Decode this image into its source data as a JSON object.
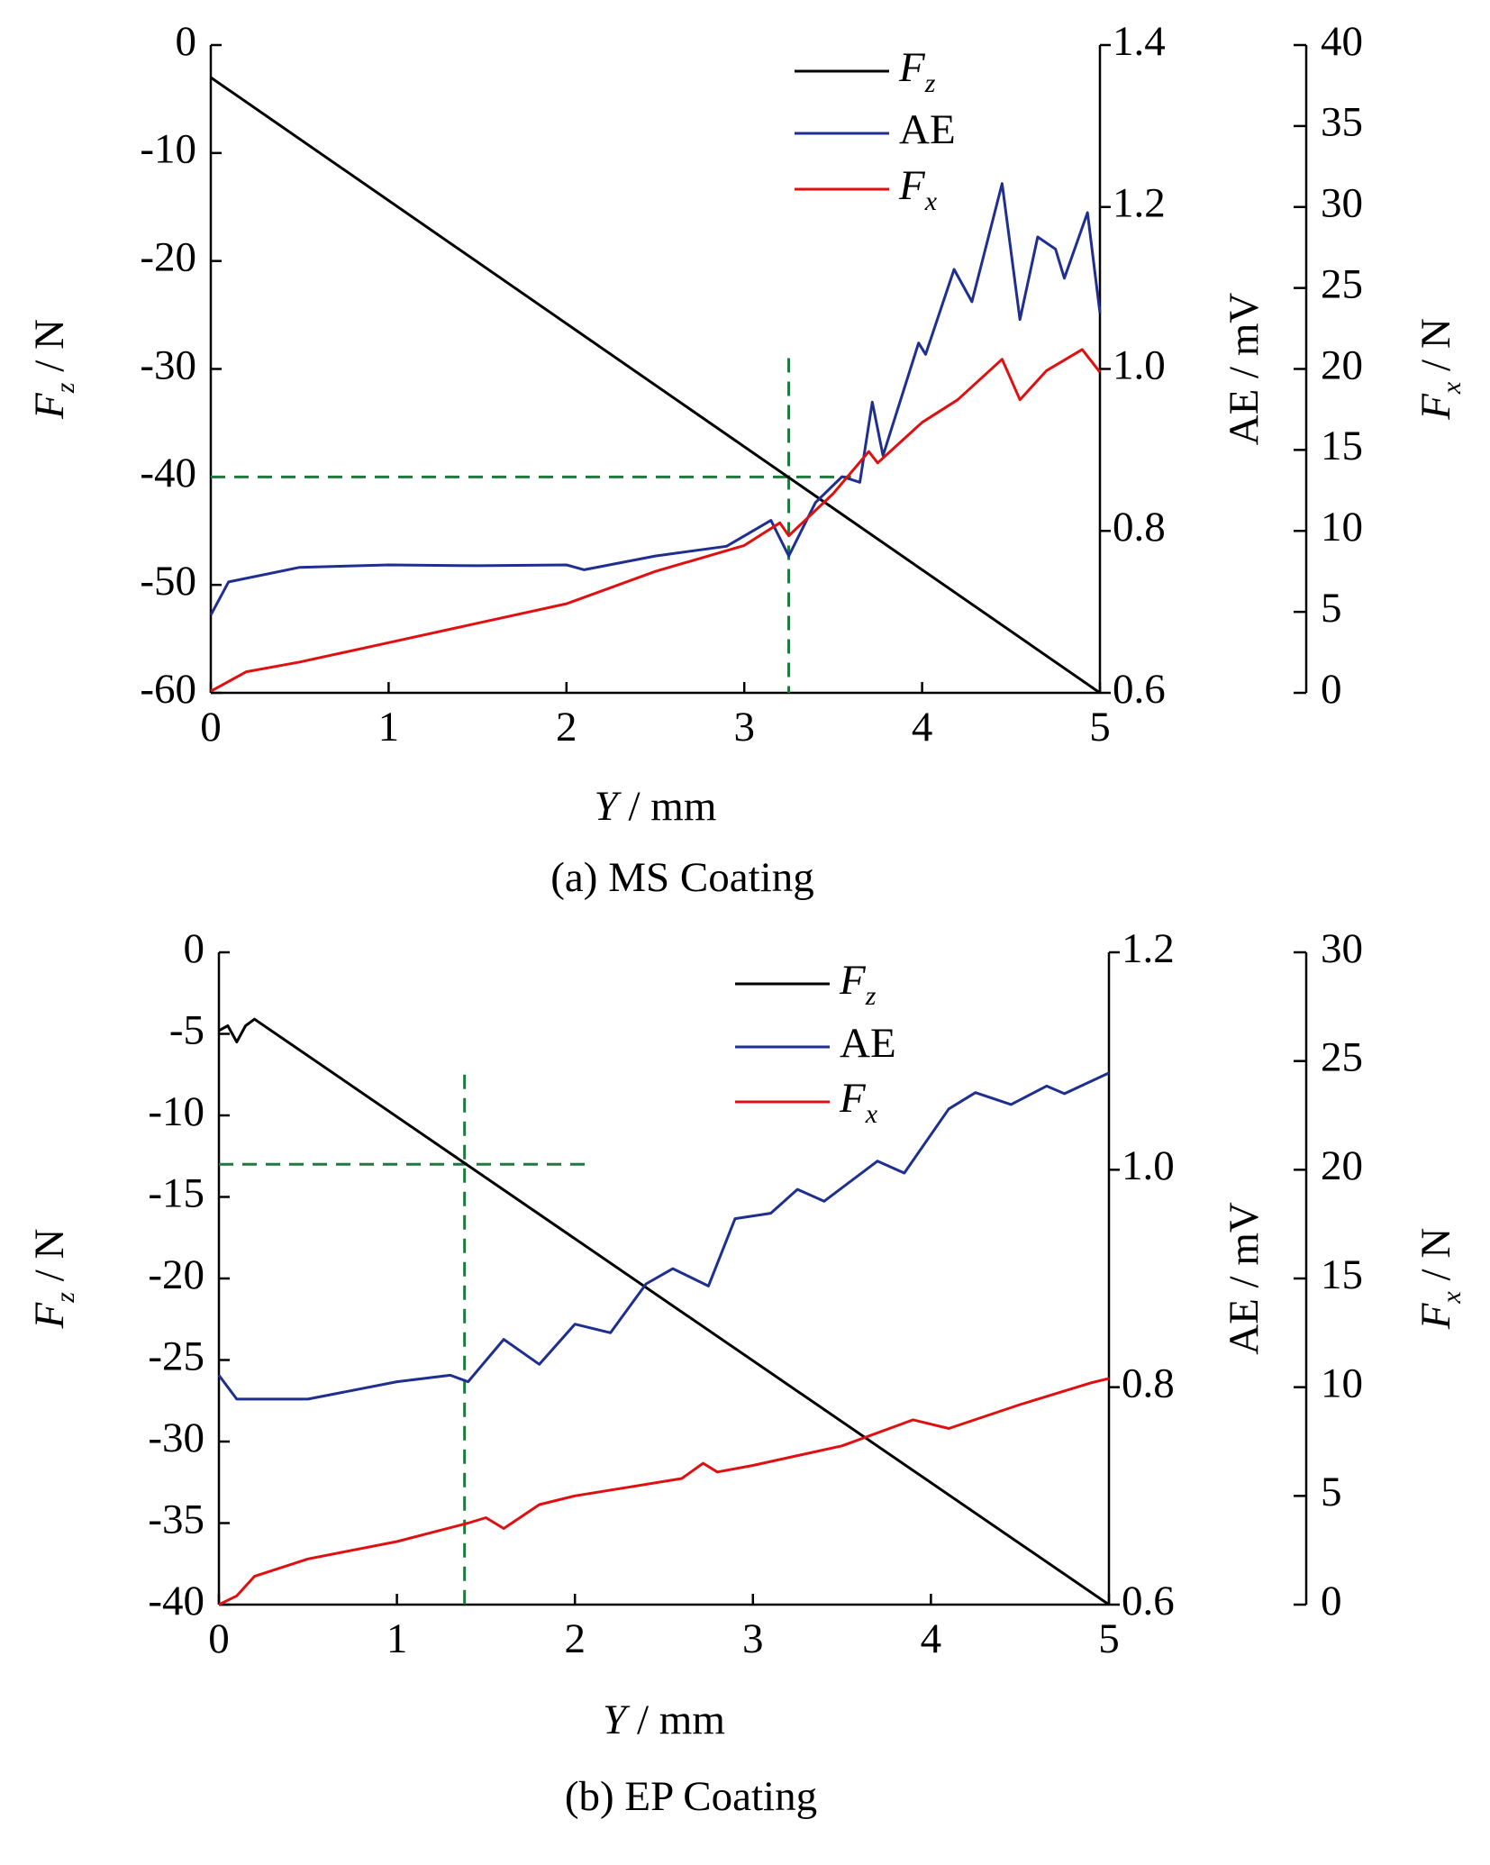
{
  "chart_data": [
    {
      "type": "line",
      "caption": "(a) MS Coating",
      "xlabel": {
        "symbol": "Y",
        "unit": " / mm"
      },
      "ylabel": {
        "symbol": "F",
        "sub": "z",
        "unit": " / N"
      },
      "y2label": "AE / mV",
      "y3label": {
        "symbol": "F",
        "sub": "x",
        "unit": " / N"
      },
      "xlim": [
        0,
        5
      ],
      "xticks": [
        0,
        1,
        2,
        3,
        4,
        5
      ],
      "ylim": [
        -60,
        0
      ],
      "yticks": [
        0,
        -10,
        -20,
        -30,
        -40,
        -50,
        -60
      ],
      "y2lim": [
        0.6,
        1.4
      ],
      "y2ticks": [
        0.6,
        0.8,
        {
          "value": 1.0,
          "label": "1.0"
        },
        1.2,
        1.4
      ],
      "y3lim": [
        0,
        40
      ],
      "y3ticks": [
        0,
        5,
        10,
        15,
        20,
        25,
        30,
        35,
        40
      ],
      "series": [
        {
          "name": "F",
          "name_sub": "z",
          "color": "#000000",
          "axis": "y",
          "x": [
            0,
            5
          ],
          "values": [
            -3,
            -60
          ]
        },
        {
          "name": "AE",
          "color": "#1f2f8f",
          "axis": "y2",
          "x": [
            0,
            0.1,
            0.5,
            1,
            1.5,
            2,
            2.1,
            2.5,
            2.9,
            3.15,
            3.25,
            3.4,
            3.55,
            3.65,
            3.72,
            3.78,
            3.98,
            4.02,
            4.18,
            4.28,
            4.45,
            4.55,
            4.65,
            4.75,
            4.8,
            4.93,
            5
          ],
          "values": [
            0.696,
            0.737,
            0.755,
            0.758,
            0.757,
            0.758,
            0.752,
            0.769,
            0.781,
            0.813,
            0.769,
            0.835,
            0.867,
            0.86,
            0.959,
            0.893,
            1.032,
            1.018,
            1.123,
            1.083,
            1.229,
            1.061,
            1.163,
            1.148,
            1.112,
            1.193,
            1.069
          ]
        },
        {
          "name": "F",
          "name_sub": "x",
          "color": "#e01010",
          "axis": "y3",
          "x": [
            0,
            0.2,
            0.5,
            1,
            1.5,
            2,
            2.5,
            3,
            3.2,
            3.25,
            3.5,
            3.7,
            3.75,
            4,
            4.2,
            4.45,
            4.55,
            4.7,
            4.9,
            5
          ],
          "values": [
            0.1,
            1.3,
            1.9,
            3.1,
            4.3,
            5.5,
            7.5,
            9.1,
            10.5,
            9.7,
            12.3,
            14.9,
            14.2,
            16.7,
            18.1,
            20.6,
            18.1,
            19.9,
            21.2,
            19.8
          ]
        }
      ],
      "reference_lines": [
        {
          "orientation": "vertical",
          "x": 3.25,
          "from": -29,
          "to": -60
        },
        {
          "orientation": "horizontal",
          "y": -40,
          "from": 0,
          "to": 3.6
        }
      ]
    },
    {
      "type": "line",
      "caption": "(b) EP Coating",
      "xlabel": {
        "symbol": "Y",
        "unit": " / mm"
      },
      "ylabel": {
        "symbol": "F",
        "sub": "z",
        "unit": " / N"
      },
      "y2label": "AE / mV",
      "y3label": {
        "symbol": "F",
        "sub": "x",
        "unit": " / N"
      },
      "xlim": [
        0,
        5
      ],
      "xticks": [
        0,
        1,
        2,
        3,
        4,
        5
      ],
      "ylim": [
        -40,
        0
      ],
      "yticks": [
        0,
        -5,
        -10,
        -15,
        -20,
        -25,
        -30,
        -35,
        -40
      ],
      "y2lim": [
        0.6,
        1.2
      ],
      "y2ticks": [
        0.6,
        0.8,
        {
          "value": 1.0,
          "label": "1.0"
        },
        1.2
      ],
      "y3lim": [
        0,
        30
      ],
      "y3ticks": [
        0,
        5,
        10,
        15,
        20,
        25,
        30
      ],
      "series": [
        {
          "name": "F",
          "name_sub": "z",
          "color": "#000000",
          "axis": "y",
          "x": [
            0,
            0.05,
            0.1,
            0.15,
            0.2,
            5
          ],
          "values": [
            -4.8,
            -4.5,
            -5.5,
            -4.5,
            -4.1,
            -40
          ]
        },
        {
          "name": "AE",
          "color": "#1f2f8f",
          "axis": "y2",
          "x": [
            0,
            0.1,
            0.5,
            1,
            1.3,
            1.4,
            1.6,
            1.8,
            2,
            2.2,
            2.4,
            2.55,
            2.75,
            2.9,
            3.1,
            3.25,
            3.4,
            3.7,
            3.85,
            4.1,
            4.25,
            4.45,
            4.65,
            4.75,
            5
          ],
          "values": [
            0.811,
            0.789,
            0.789,
            0.805,
            0.811,
            0.805,
            0.844,
            0.821,
            0.858,
            0.85,
            0.895,
            0.909,
            0.893,
            0.955,
            0.96,
            0.982,
            0.971,
            1.008,
            0.997,
            1.056,
            1.071,
            1.06,
            1.077,
            1.07,
            1.089
          ]
        },
        {
          "name": "F",
          "name_sub": "x",
          "color": "#e01010",
          "axis": "y3",
          "x": [
            0,
            0.1,
            0.2,
            0.5,
            1,
            1.4,
            1.5,
            1.6,
            1.8,
            2,
            2.3,
            2.6,
            2.72,
            2.8,
            3,
            3.5,
            3.9,
            4.1,
            4.5,
            4.9,
            5
          ],
          "values": [
            0,
            0.4,
            1.3,
            2.1,
            2.9,
            3.75,
            4.0,
            3.5,
            4.6,
            5.0,
            5.4,
            5.8,
            6.5,
            6.1,
            6.4,
            7.3,
            8.5,
            8.1,
            9.2,
            10.2,
            10.4
          ]
        }
      ],
      "reference_lines": [
        {
          "orientation": "vertical",
          "x": 1.38,
          "from": -7.5,
          "to": -40
        },
        {
          "orientation": "horizontal",
          "y": -13,
          "from": 0,
          "to": 2.1
        }
      ]
    }
  ]
}
